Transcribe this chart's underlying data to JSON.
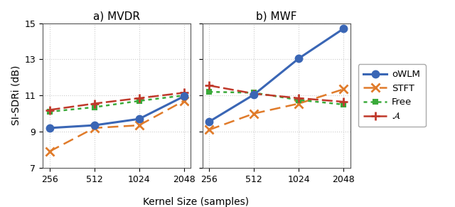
{
  "x_labels": [
    "256",
    "512",
    "1024",
    "2048"
  ],
  "x_values": [
    256,
    512,
    1024,
    2048
  ],
  "mvdr": {
    "oWLM": [
      9.2,
      9.35,
      9.7,
      10.95
    ],
    "STFT": [
      7.9,
      9.2,
      9.35,
      10.7
    ],
    "Free": [
      10.1,
      10.35,
      10.7,
      11.0
    ],
    "A": [
      10.2,
      10.55,
      10.85,
      11.15
    ]
  },
  "mwf": {
    "oWLM": [
      9.55,
      11.05,
      13.05,
      14.7
    ],
    "STFT": [
      9.1,
      10.0,
      10.55,
      11.35
    ],
    "Free": [
      11.2,
      11.15,
      10.75,
      10.5
    ],
    "A": [
      11.55,
      11.1,
      10.85,
      10.65
    ]
  },
  "colors": {
    "oWLM": "#3a66b5",
    "STFT": "#e07b2a",
    "Free": "#3aaa3a",
    "A": "#c0392b"
  },
  "markers": {
    "oWLM": "o",
    "STFT": "x",
    "Free": "s",
    "A": "+"
  },
  "legend_labels": {
    "oWLM": "oWLM",
    "STFT": "STFT",
    "Free": "Free",
    "A": "$\\mathcal{A}$"
  },
  "ylim": [
    7,
    15
  ],
  "yticks": [
    7,
    9,
    11,
    13,
    15
  ],
  "ylabel": "SI-SDRi (dB)",
  "xlabel": "Kernel Size (samples)",
  "title_a": "a) MVDR",
  "title_b": "b) MWF",
  "grid_color": "#cccccc",
  "grid_linestyle": ":"
}
